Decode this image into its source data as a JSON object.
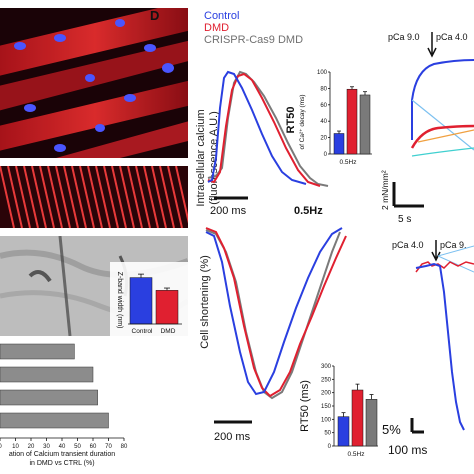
{
  "panel_letter": "D",
  "legend": {
    "items": [
      {
        "label": "Control",
        "color": "#2a3fe0"
      },
      {
        "label": "DMD",
        "color": "#e02030"
      },
      {
        "label": "CRISPR-Cas9 DMD",
        "color": "#7a7a7a"
      }
    ]
  },
  "top_trace": {
    "ylabel_line1": "Intracellular calcium",
    "ylabel_line2": "(fluorescence A.U.)",
    "scalebar": "200 ms",
    "freq": "0.5Hz"
  },
  "bottom_trace": {
    "ylabel": "Cell shortening (%)",
    "scalebar": "200 ms"
  },
  "force_panel": {
    "pca_labels": [
      "pCa 9.0",
      "pCa 4.0"
    ],
    "scale_y": "2 mN/mm²",
    "scale_x": "5 s"
  },
  "sarcomere_panel": {
    "pca_labels": [
      "pCa 4.0",
      "pCa 9."
    ],
    "scale_y": "5%",
    "scale_x": "100 ms"
  },
  "left_bar": {
    "ylabel": "Z-band width (nm)",
    "xticks": [
      "Control",
      "DMD"
    ]
  },
  "bottom_left": {
    "xlabel_line1": "ation of Calcium transient duration",
    "xlabel_line2": "in DMD vs CTRL (%)",
    "xticks": [
      "0",
      "10",
      "20",
      "30",
      "40",
      "50",
      "60",
      "70",
      "80"
    ]
  },
  "chart_data": [
    {
      "type": "bar",
      "title": "RT50",
      "ylabel": "of Ca²⁺ decay (ms)",
      "xlabel": "0.5Hz",
      "ylim": [
        0,
        100
      ],
      "yticks": [
        "0",
        "20",
        "40",
        "60",
        "80",
        "100"
      ],
      "categories": [
        "Control",
        "DMD",
        "CRISPR-Cas9 DMD"
      ],
      "values": [
        25,
        79,
        72
      ],
      "errors": [
        3,
        3,
        4
      ],
      "colors": [
        "#2a3fe0",
        "#e02030",
        "#7a7a7a"
      ]
    },
    {
      "type": "bar",
      "title": "RT50 (ms)",
      "xlabel": "0.5Hz",
      "ylim": [
        0,
        300
      ],
      "yticks": [
        "0",
        "50",
        "100",
        "150",
        "200",
        "250",
        "300"
      ],
      "categories": [
        "Control",
        "DMD",
        "CRISPR-Cas9 DMD"
      ],
      "values": [
        110,
        210,
        175
      ],
      "errors": [
        15,
        22,
        18
      ],
      "colors": [
        "#2a3fe0",
        "#e02030",
        "#7a7a7a"
      ]
    },
    {
      "type": "bar",
      "title": "",
      "ylabel": "Z-band width (nm)",
      "categories": [
        "Control",
        "DMD"
      ],
      "values": [
        0.8,
        0.58
      ],
      "errors": [
        0.06,
        0.04
      ],
      "colors": [
        "#2a3fe0",
        "#e02030"
      ]
    },
    {
      "type": "bar",
      "orientation": "horizontal",
      "xlabel": "ation of Calcium transient duration in DMD vs CTRL (%)",
      "xlim": [
        0,
        80
      ],
      "categories": [
        "",
        "",
        "",
        ""
      ],
      "values": [
        48,
        60,
        63,
        70
      ]
    }
  ]
}
